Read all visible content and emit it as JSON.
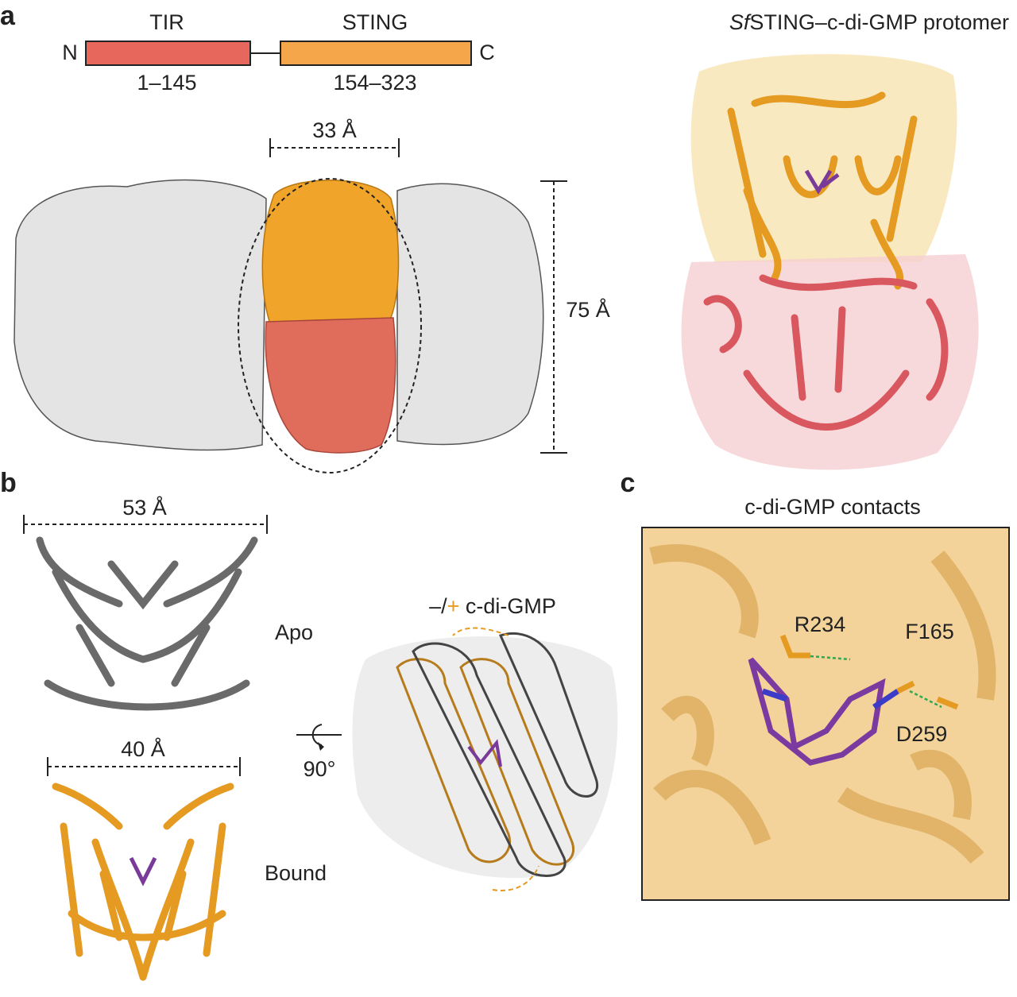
{
  "panel_a": {
    "label": "a",
    "domain_diagram": {
      "n_term": "N",
      "c_term": "C",
      "domains": [
        {
          "name": "TIR",
          "range": "1–145"
        },
        {
          "name": "STING",
          "range": "154–323"
        }
      ]
    },
    "width_label": "33 Å",
    "height_label": "75 Å",
    "protomer_title": {
      "italic": "Sf",
      "rest": "STING–c-di-GMP protomer"
    }
  },
  "panel_b": {
    "label": "b",
    "apo_width": "53 Å",
    "apo_label": "Apo",
    "bound_width": "40 Å",
    "bound_label": "Bound",
    "rotation": "90°",
    "overlay_title": {
      "prefix": "–/",
      "plus": "+",
      "rest": " c-di-GMP"
    }
  },
  "panel_c": {
    "label": "c",
    "title": "c-di-GMP contacts",
    "residues": [
      "R234",
      "F165",
      "D259"
    ]
  }
}
